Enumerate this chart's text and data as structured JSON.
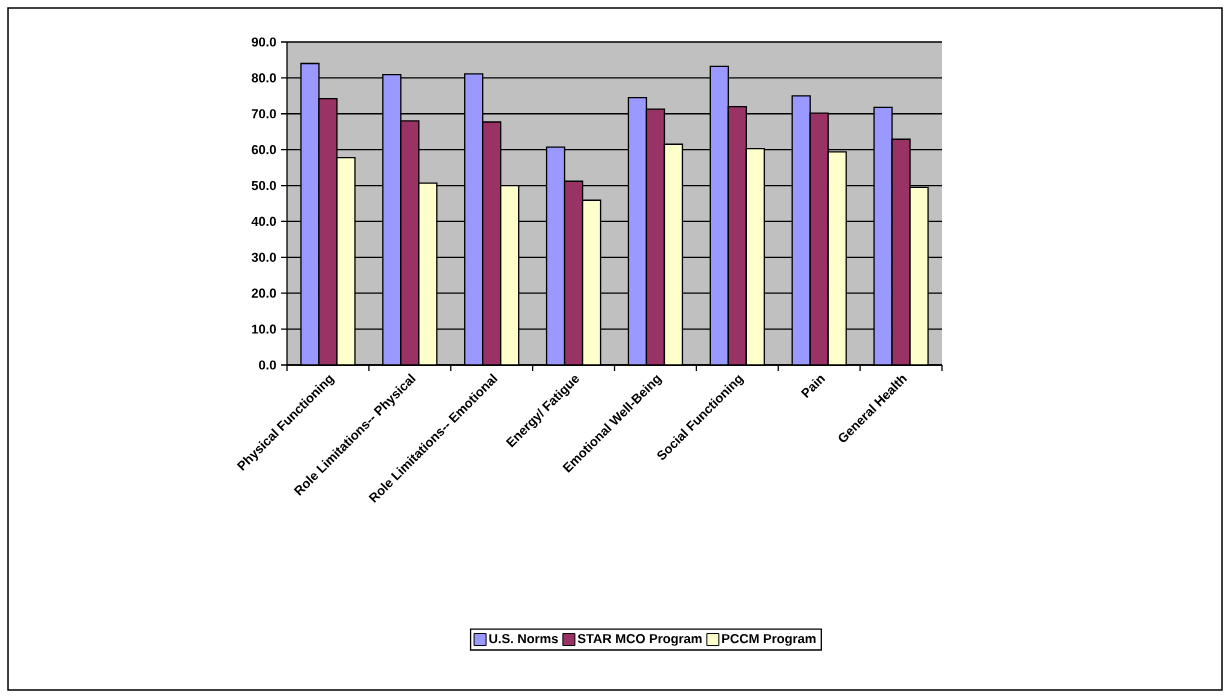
{
  "chart_data": {
    "type": "bar",
    "categories": [
      "Physical Functioning",
      "Role Limitations-- Physical",
      "Role Limitations-- Emotional",
      "Energy/ Fatigue",
      "Emotional Well-Being",
      "Social Functioning",
      "Pain",
      "General Health"
    ],
    "series": [
      {
        "name": "U.S. Norms",
        "color": "#9999ff",
        "values": [
          84.0,
          80.9,
          81.1,
          60.7,
          74.5,
          83.2,
          75.0,
          71.8
        ]
      },
      {
        "name": "STAR MCO Program",
        "color": "#993366",
        "values": [
          74.2,
          68.0,
          67.7,
          51.2,
          71.3,
          72.0,
          70.2,
          62.9
        ]
      },
      {
        "name": "PCCM Program",
        "color": "#ffffcc",
        "values": [
          57.8,
          50.7,
          50.0,
          45.9,
          61.5,
          60.3,
          59.4,
          49.5
        ]
      }
    ],
    "ylim": [
      0,
      90
    ],
    "yticks": [
      {
        "value": 0,
        "label": "0.0"
      },
      {
        "value": 10,
        "label": "10.0"
      },
      {
        "value": 20,
        "label": "20.0"
      },
      {
        "value": 30,
        "label": "30.0"
      },
      {
        "value": 40,
        "label": "40.0"
      },
      {
        "value": 50,
        "label": "50.0"
      },
      {
        "value": 60,
        "label": "60.0"
      },
      {
        "value": 70,
        "label": "70.0"
      },
      {
        "value": 80,
        "label": "80.0"
      },
      {
        "value": 90,
        "label": "90.0"
      }
    ],
    "grid": "y",
    "legend": "bottom"
  }
}
